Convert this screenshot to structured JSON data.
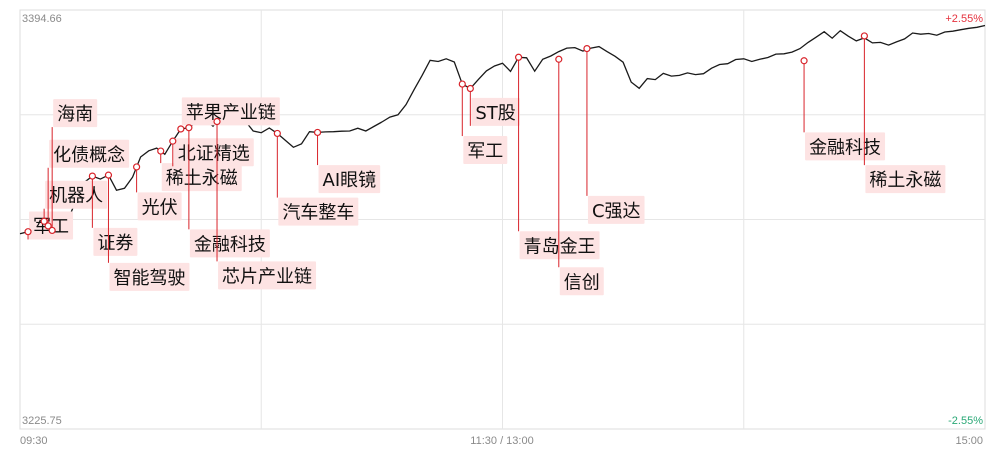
{
  "chart_data": {
    "type": "line",
    "y_axis": {
      "max_label": "3394.66",
      "min_label": "3225.75"
    },
    "pct_axis": {
      "max_label": "+2.55%",
      "min_label": "-2.55%"
    },
    "x_ticks": [
      "09:30",
      "11:30 / 13:00",
      "15:00"
    ],
    "grid": true,
    "series": [
      {
        "x": [
          0,
          2,
          4,
          6,
          8,
          10,
          12,
          14,
          16,
          18,
          20,
          22,
          24,
          26,
          28,
          30,
          32,
          34,
          36,
          38,
          40,
          42,
          44,
          46,
          48,
          50,
          52,
          54,
          56,
          58,
          60,
          62,
          64,
          66,
          68,
          70,
          72,
          74,
          76,
          78,
          80,
          82,
          84,
          86,
          88,
          90,
          92,
          94,
          96,
          98,
          100,
          102,
          104,
          106,
          108,
          110,
          112,
          114,
          116,
          118,
          120,
          122,
          124,
          126,
          128,
          130,
          132,
          134,
          136,
          138,
          140,
          142,
          144,
          146,
          148,
          150,
          152,
          154,
          156,
          158,
          160,
          162,
          164,
          166,
          168,
          170,
          172,
          174,
          176,
          178,
          180,
          182,
          184,
          186,
          188,
          190,
          192,
          194,
          196,
          198,
          200,
          202,
          204,
          206,
          208,
          210,
          212,
          214,
          216,
          218,
          220,
          222,
          224,
          226,
          228,
          230,
          232,
          234,
          236,
          238,
          240
        ],
        "y": [
          3304.5,
          3305.3,
          3305.5,
          3309.5,
          3305.8,
          3306.1,
          3310.4,
          3318.1,
          3325.2,
          3327.7,
          3326.5,
          3328.1,
          3322.0,
          3322.8,
          3327.3,
          3335.4,
          3337.9,
          3339.0,
          3336.5,
          3341.8,
          3346.7,
          3347.2,
          3349.8,
          3350.7,
          3347.8,
          3351.5,
          3352.4,
          3353.9,
          3349.9,
          3345.9,
          3345.2,
          3347.1,
          3344.9,
          3342.1,
          3339.3,
          3340.7,
          3345.6,
          3345.3,
          3345.5,
          3345.6,
          3345.8,
          3345.9,
          3347.0,
          3345.9,
          3347.7,
          3349.5,
          3351.5,
          3352.4,
          3356.5,
          3362.5,
          3368.3,
          3374.4,
          3373.9,
          3375.0,
          3373.7,
          3364.8,
          3363.0,
          3366.7,
          3370.1,
          3372.1,
          3373.2,
          3369.9,
          3375.6,
          3375.4,
          3370.0,
          3374.8,
          3376.1,
          3377.9,
          3379.3,
          3379.5,
          3378.1,
          3379.3,
          3379.9,
          3377.9,
          3376.0,
          3373.6,
          3365.6,
          3363.1,
          3367.0,
          3366.6,
          3369.1,
          3368.0,
          3368.3,
          3369.3,
          3368.6,
          3369.0,
          3371.2,
          3372.7,
          3373.0,
          3374.7,
          3375.0,
          3373.9,
          3374.8,
          3375.5,
          3376.9,
          3377.0,
          3377.7,
          3379.1,
          3381.6,
          3383.7,
          3385.9,
          3383.3,
          3386.3,
          3384.1,
          3382.2,
          3383.4,
          3381.4,
          3381.6,
          3380.5,
          3381.8,
          3383.0,
          3385.4,
          3384.9,
          3385.2,
          3384.5,
          3385.8,
          3386.1,
          3386.7,
          3387.3,
          3387.7,
          3388.4
        ]
      }
    ],
    "annotations": [
      {
        "label": "军工",
        "x": 2,
        "y": 3305.3,
        "side": "up",
        "label_y_value": 3307.8
      },
      {
        "label": "机器人",
        "x": 6,
        "y": 3309.5,
        "side": "up",
        "label_y_value": 3320.2
      },
      {
        "label": "化债概念",
        "x": 7,
        "y": 3307.6,
        "side": "up",
        "label_y_value": 3336.7
      },
      {
        "label": "海南",
        "x": 8,
        "y": 3305.8,
        "side": "up",
        "label_y_value": 3353.1
      },
      {
        "label": "证券",
        "x": 18,
        "y": 3327.7,
        "side": "down",
        "label_y_value": 3301.2
      },
      {
        "label": "智能驾驶",
        "x": 22,
        "y": 3328.1,
        "side": "down",
        "label_y_value": 3287.1
      },
      {
        "label": "光伏",
        "x": 29,
        "y": 3331.4,
        "side": "down",
        "label_y_value": 3315.5
      },
      {
        "label": "稀土永磁",
        "x": 35,
        "y": 3337.8,
        "side": "down",
        "label_y_value": 3327.3
      },
      {
        "label": "北证精选",
        "x": 38,
        "y": 3341.8,
        "side": "up",
        "label_y_value": 3337.3
      },
      {
        "label": "苹果产业链",
        "x": 40,
        "y": 3346.7,
        "side": "up",
        "label_y_value": 3353.8
      },
      {
        "label": "金融科技",
        "x": 42,
        "y": 3347.2,
        "side": "down",
        "label_y_value": 3300.6
      },
      {
        "label": "芯片产业链",
        "x": 49,
        "y": 3349.7,
        "side": "down",
        "label_y_value": 3287.7
      },
      {
        "label": "汽车整车",
        "x": 64,
        "y": 3344.9,
        "side": "down",
        "label_y_value": 3313.4
      },
      {
        "label": "AI眼镜",
        "x": 74,
        "y": 3345.3,
        "side": "down",
        "label_y_value": 3326.5
      },
      {
        "label": "ST股",
        "x": 112,
        "y": 3363.0,
        "side": "up",
        "label_y_value": 3353.6
      },
      {
        "label": "军工",
        "x": 110,
        "y": 3364.8,
        "side": "down",
        "label_y_value": 3338.2
      },
      {
        "label": "青岛金王",
        "x": 124,
        "y": 3375.6,
        "side": "down",
        "label_y_value": 3299.8
      },
      {
        "label": "信创",
        "x": 134,
        "y": 3374.8,
        "side": "down",
        "label_y_value": 3285.3
      },
      {
        "label": "C强达",
        "x": 141,
        "y": 3379.1,
        "side": "down",
        "label_y_value": 3314.1
      },
      {
        "label": "金融科技",
        "x": 195,
        "y": 3374.2,
        "side": "down",
        "label_y_value": 3339.7
      },
      {
        "label": "稀土永磁",
        "x": 210,
        "y": 3384.2,
        "side": "down",
        "label_y_value": 3326.5
      }
    ]
  }
}
